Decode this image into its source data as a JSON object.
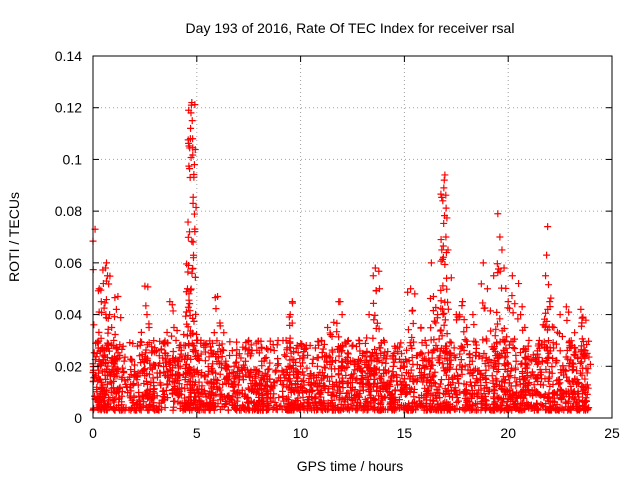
{
  "chart_data": {
    "type": "scatter",
    "title": "Day 193 of 2016, Rate Of TEC Index for receiver rsal",
    "xlabel": "GPS time / hours",
    "ylabel": "ROTI / TECUs",
    "xlim": [
      0,
      25
    ],
    "ylim": [
      0,
      0.14
    ],
    "x_ticks": [
      0,
      5,
      10,
      15,
      20,
      25
    ],
    "y_ticks": [
      0,
      0.02,
      0.04,
      0.06,
      0.08,
      0.1,
      0.12,
      0.14
    ],
    "x_tick_labels": [
      "0",
      "5",
      "10",
      "15",
      "20",
      "25"
    ],
    "y_tick_labels": [
      "0",
      "0.02",
      "0.04",
      "0.06",
      "0.08",
      "0.1",
      "0.12",
      "0.14"
    ],
    "grid": true,
    "marker": "+",
    "marker_color": "#ff0000",
    "series": [
      {
        "name": "ROTI",
        "points": [
          [
            0.1,
            0.073
          ],
          [
            0.2,
            0.025
          ],
          [
            0.3,
            0.05
          ],
          [
            0.4,
            0.045
          ],
          [
            0.5,
            0.052
          ],
          [
            0.6,
            0.058
          ],
          [
            0.65,
            0.06
          ],
          [
            0.7,
            0.055
          ],
          [
            0.8,
            0.04
          ],
          [
            0.9,
            0.035
          ],
          [
            1.0,
            0.03
          ],
          [
            1.2,
            0.047
          ],
          [
            1.5,
            0.022
          ],
          [
            2.0,
            0.018
          ],
          [
            2.5,
            0.051
          ],
          [
            2.6,
            0.04
          ],
          [
            2.7,
            0.035
          ],
          [
            3.5,
            0.025
          ],
          [
            3.7,
            0.045
          ],
          [
            3.9,
            0.035
          ],
          [
            4.0,
            0.03
          ],
          [
            4.2,
            0.02
          ],
          [
            4.5,
            0.041
          ],
          [
            4.55,
            0.05
          ],
          [
            4.6,
            0.059
          ],
          [
            4.65,
            0.072
          ],
          [
            4.68,
            0.093
          ],
          [
            4.7,
            0.112
          ],
          [
            4.72,
            0.118
          ],
          [
            4.74,
            0.121
          ],
          [
            4.76,
            0.122
          ],
          [
            4.78,
            0.115
          ],
          [
            4.8,
            0.108
          ],
          [
            4.82,
            0.083
          ],
          [
            4.84,
            0.062
          ],
          [
            5.2,
            0.03
          ],
          [
            5.8,
            0.025
          ],
          [
            6.0,
            0.047
          ],
          [
            6.3,
            0.033
          ],
          [
            6.8,
            0.02
          ],
          [
            7.5,
            0.03
          ],
          [
            8.0,
            0.018
          ],
          [
            8.5,
            0.015
          ],
          [
            9.3,
            0.03
          ],
          [
            9.5,
            0.04
          ],
          [
            9.6,
            0.045
          ],
          [
            10.0,
            0.02
          ],
          [
            10.5,
            0.017
          ],
          [
            11.0,
            0.03
          ],
          [
            11.3,
            0.035
          ],
          [
            11.6,
            0.037
          ],
          [
            11.9,
            0.045
          ],
          [
            12.0,
            0.04
          ],
          [
            12.3,
            0.03
          ],
          [
            12.8,
            0.02
          ],
          [
            13.0,
            0.025
          ],
          [
            13.3,
            0.04
          ],
          [
            13.5,
            0.055
          ],
          [
            13.6,
            0.058
          ],
          [
            13.8,
            0.05
          ],
          [
            14.0,
            0.03
          ],
          [
            14.5,
            0.025
          ],
          [
            15.0,
            0.02
          ],
          [
            15.3,
            0.05
          ],
          [
            15.5,
            0.048
          ],
          [
            15.8,
            0.035
          ],
          [
            16.0,
            0.03
          ],
          [
            16.3,
            0.06
          ],
          [
            16.4,
            0.047
          ],
          [
            16.6,
            0.04
          ],
          [
            16.8,
            0.065
          ],
          [
            16.85,
            0.084
          ],
          [
            16.9,
            0.089
          ],
          [
            16.92,
            0.092
          ],
          [
            16.95,
            0.094
          ],
          [
            17.0,
            0.07
          ],
          [
            17.1,
            0.065
          ],
          [
            17.5,
            0.04
          ],
          [
            17.8,
            0.045
          ],
          [
            18.0,
            0.035
          ],
          [
            18.3,
            0.04
          ],
          [
            18.8,
            0.06
          ],
          [
            19.0,
            0.05
          ],
          [
            19.3,
            0.055
          ],
          [
            19.5,
            0.079
          ],
          [
            19.6,
            0.07
          ],
          [
            19.7,
            0.065
          ],
          [
            19.8,
            0.058
          ],
          [
            20.0,
            0.045
          ],
          [
            20.2,
            0.055
          ],
          [
            20.5,
            0.052
          ],
          [
            20.8,
            0.035
          ],
          [
            21.0,
            0.03
          ],
          [
            21.5,
            0.03
          ],
          [
            21.8,
            0.055
          ],
          [
            21.85,
            0.063
          ],
          [
            21.9,
            0.074
          ],
          [
            22.0,
            0.045
          ],
          [
            22.2,
            0.035
          ],
          [
            22.5,
            0.04
          ],
          [
            22.8,
            0.043
          ],
          [
            23.2,
            0.033
          ],
          [
            23.5,
            0.042
          ],
          [
            23.6,
            0.039
          ],
          [
            23.8,
            0.025
          ]
        ],
        "background_band": {
          "x_range": [
            0,
            23.9
          ],
          "typical_range": [
            0.003,
            0.02
          ]
        }
      }
    ]
  }
}
